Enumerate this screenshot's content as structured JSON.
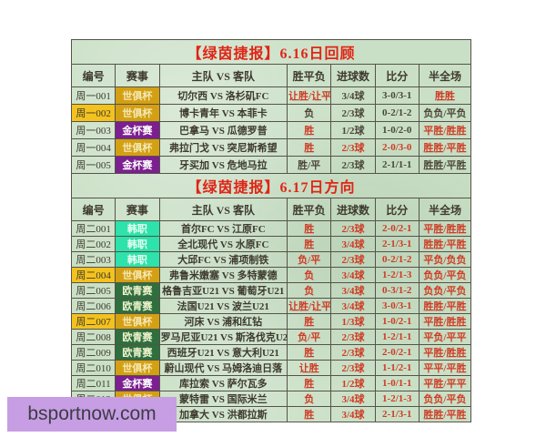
{
  "watermark": "bsportnow.com",
  "columns": [
    "编号",
    "赛事",
    "主队 VS 客队",
    "胜平负",
    "进球数",
    "比分",
    "半全场"
  ],
  "colors": {
    "title_red": "#e02517",
    "hit_text": "#cf3a24",
    "miss_text": "#4c4639",
    "header_text": "#3e3a2e",
    "table_bg": "#cae0c6",
    "border": "#565349",
    "highlight_yellow": "#f3c21e",
    "watermark_bg": "#c79de4",
    "league": {
      "世俱杯": {
        "bg": "#d4a013",
        "text": "#f3e9b8"
      },
      "金杯赛": {
        "bg": "#7c1f90",
        "text": "#ffffff"
      },
      "韩职": {
        "bg": "#2ee2ab",
        "text": "#e8fff2"
      },
      "欧青赛": {
        "bg": "#2e6f3e",
        "text": "#eef2cc"
      }
    }
  },
  "sections": [
    {
      "title": "【绿茵捷报】6.16日回顾",
      "rows": [
        {
          "id": "周一001",
          "id_highlight": false,
          "league": "世俱杯",
          "teams": "切尔西 VS 洛杉矶FC",
          "spf": "让胜/让平",
          "spf_hit": true,
          "goals": "3/4球",
          "goals_hit": false,
          "score": "3-0/3-1",
          "score_hit": false,
          "half": "胜胜",
          "half_hit": true
        },
        {
          "id": "周一002",
          "id_highlight": true,
          "league": "世俱杯",
          "teams": "博卡青年 VS 本菲卡",
          "spf": "负",
          "spf_hit": false,
          "goals": "2/3球",
          "goals_hit": false,
          "score": "0-2/1-2",
          "score_hit": false,
          "half": "负负/平负",
          "half_hit": false
        },
        {
          "id": "周一003",
          "id_highlight": false,
          "league": "金杯赛",
          "teams": "巴拿马 VS 瓜德罗普",
          "spf": "胜",
          "spf_hit": true,
          "goals": "1/2球",
          "goals_hit": false,
          "score": "1-0/2-0",
          "score_hit": false,
          "half": "平胜/胜胜",
          "half_hit": true
        },
        {
          "id": "周一004",
          "id_highlight": false,
          "league": "世俱杯",
          "teams": "弗拉门戈 VS 突尼斯希望",
          "spf": "胜",
          "spf_hit": true,
          "goals": "2/3球",
          "goals_hit": true,
          "score": "2-0/3-0",
          "score_hit": true,
          "half": "胜胜/平胜",
          "half_hit": true
        },
        {
          "id": "周一005",
          "id_highlight": false,
          "league": "金杯赛",
          "teams": "牙买加 VS 危地马拉",
          "spf": "胜/平",
          "spf_hit": false,
          "goals": "2/3球",
          "goals_hit": false,
          "score": "2-1/1-1",
          "score_hit": false,
          "half": "胜胜/平胜",
          "half_hit": false
        }
      ]
    },
    {
      "title": "【绿茵捷报】6.17日方向",
      "rows": [
        {
          "id": "周二001",
          "id_highlight": false,
          "league": "韩职",
          "teams": "首尔FC VS 江原FC",
          "spf": "胜",
          "spf_hit": true,
          "goals": "2/3球",
          "goals_hit": true,
          "score": "2-0/2-1",
          "score_hit": true,
          "half": "平胜/胜胜",
          "half_hit": true
        },
        {
          "id": "周二002",
          "id_highlight": false,
          "league": "韩职",
          "teams": "全北现代 VS 水原FC",
          "spf": "胜",
          "spf_hit": true,
          "goals": "3/4球",
          "goals_hit": true,
          "score": "2-1/3-1",
          "score_hit": true,
          "half": "胜胜/平胜",
          "half_hit": true
        },
        {
          "id": "周二003",
          "id_highlight": false,
          "league": "韩职",
          "teams": "大邱FC VS 浦项制铁",
          "spf": "负/平",
          "spf_hit": true,
          "goals": "2/3球",
          "goals_hit": true,
          "score": "0-2/1-2",
          "score_hit": true,
          "half": "平负/负负",
          "half_hit": true
        },
        {
          "id": "周二004",
          "id_highlight": true,
          "league": "世俱杯",
          "teams": "弗鲁米嫩塞 VS 多特蒙德",
          "spf": "负",
          "spf_hit": true,
          "goals": "3/4球",
          "goals_hit": true,
          "score": "1-2/1-3",
          "score_hit": true,
          "half": "负负/平负",
          "half_hit": true
        },
        {
          "id": "周二005",
          "id_highlight": false,
          "league": "欧青赛",
          "teams": "格鲁吉亚U21 VS 葡萄牙U21",
          "spf": "负",
          "spf_hit": true,
          "goals": "3/4球",
          "goals_hit": true,
          "score": "0-3/1-2",
          "score_hit": true,
          "half": "负负/平负",
          "half_hit": true
        },
        {
          "id": "周二006",
          "id_highlight": false,
          "league": "欧青赛",
          "teams": "法国U21 VS 波兰U21",
          "spf": "让胜/让平",
          "spf_hit": true,
          "goals": "3/4球",
          "goals_hit": true,
          "score": "3-0/3-1",
          "score_hit": true,
          "half": "胜胜/平胜",
          "half_hit": true
        },
        {
          "id": "周二007",
          "id_highlight": true,
          "league": "世俱杯",
          "teams": "河床 VS 浦和红钻",
          "spf": "胜",
          "spf_hit": true,
          "goals": "1/3球",
          "goals_hit": true,
          "score": "1-0/2-1",
          "score_hit": true,
          "half": "平胜/胜胜",
          "half_hit": true
        },
        {
          "id": "周二008",
          "id_highlight": false,
          "league": "欧青赛",
          "teams": "罗马尼亚U21 VS 斯洛伐克U21",
          "spf": "负/平",
          "spf_hit": true,
          "goals": "2/3球",
          "goals_hit": true,
          "score": "1-2/1-1",
          "score_hit": true,
          "half": "平负/平平",
          "half_hit": true
        },
        {
          "id": "周二009",
          "id_highlight": false,
          "league": "欧青赛",
          "teams": "西班牙U21 VS 意大利U21",
          "spf": "胜",
          "spf_hit": true,
          "goals": "2/3球",
          "goals_hit": true,
          "score": "2-0/2-1",
          "score_hit": true,
          "half": "平胜/胜胜",
          "half_hit": true
        },
        {
          "id": "周二010",
          "id_highlight": false,
          "league": "世俱杯",
          "teams": "蔚山现代 VS 马姆洛迪日落",
          "spf": "让胜",
          "spf_hit": true,
          "goals": "2/3球",
          "goals_hit": true,
          "score": "1-1/2-1",
          "score_hit": true,
          "half": "平平/平胜",
          "half_hit": true
        },
        {
          "id": "周二011",
          "id_highlight": false,
          "league": "金杯赛",
          "teams": "库拉索 VS 萨尔瓦多",
          "spf": "胜",
          "spf_hit": true,
          "goals": "1/2球",
          "goals_hit": true,
          "score": "1-0/1-1",
          "score_hit": true,
          "half": "平胜/平平",
          "half_hit": true
        },
        {
          "id": "周二012",
          "id_highlight": false,
          "league": "世俱杯",
          "teams": "蒙特雷 VS 国际米兰",
          "spf": "负",
          "spf_hit": true,
          "goals": "3/4球",
          "goals_hit": true,
          "score": "1-2/1-3",
          "score_hit": true,
          "half": "负负/平负",
          "half_hit": true
        },
        {
          "id": "周二013",
          "id_highlight": false,
          "league": "金杯赛",
          "teams": "加拿大 VS 洪都拉斯",
          "spf": "胜",
          "spf_hit": true,
          "goals": "3/4球",
          "goals_hit": true,
          "score": "2-1/3-1",
          "score_hit": true,
          "half": "胜胜/平胜",
          "half_hit": true
        }
      ]
    }
  ]
}
